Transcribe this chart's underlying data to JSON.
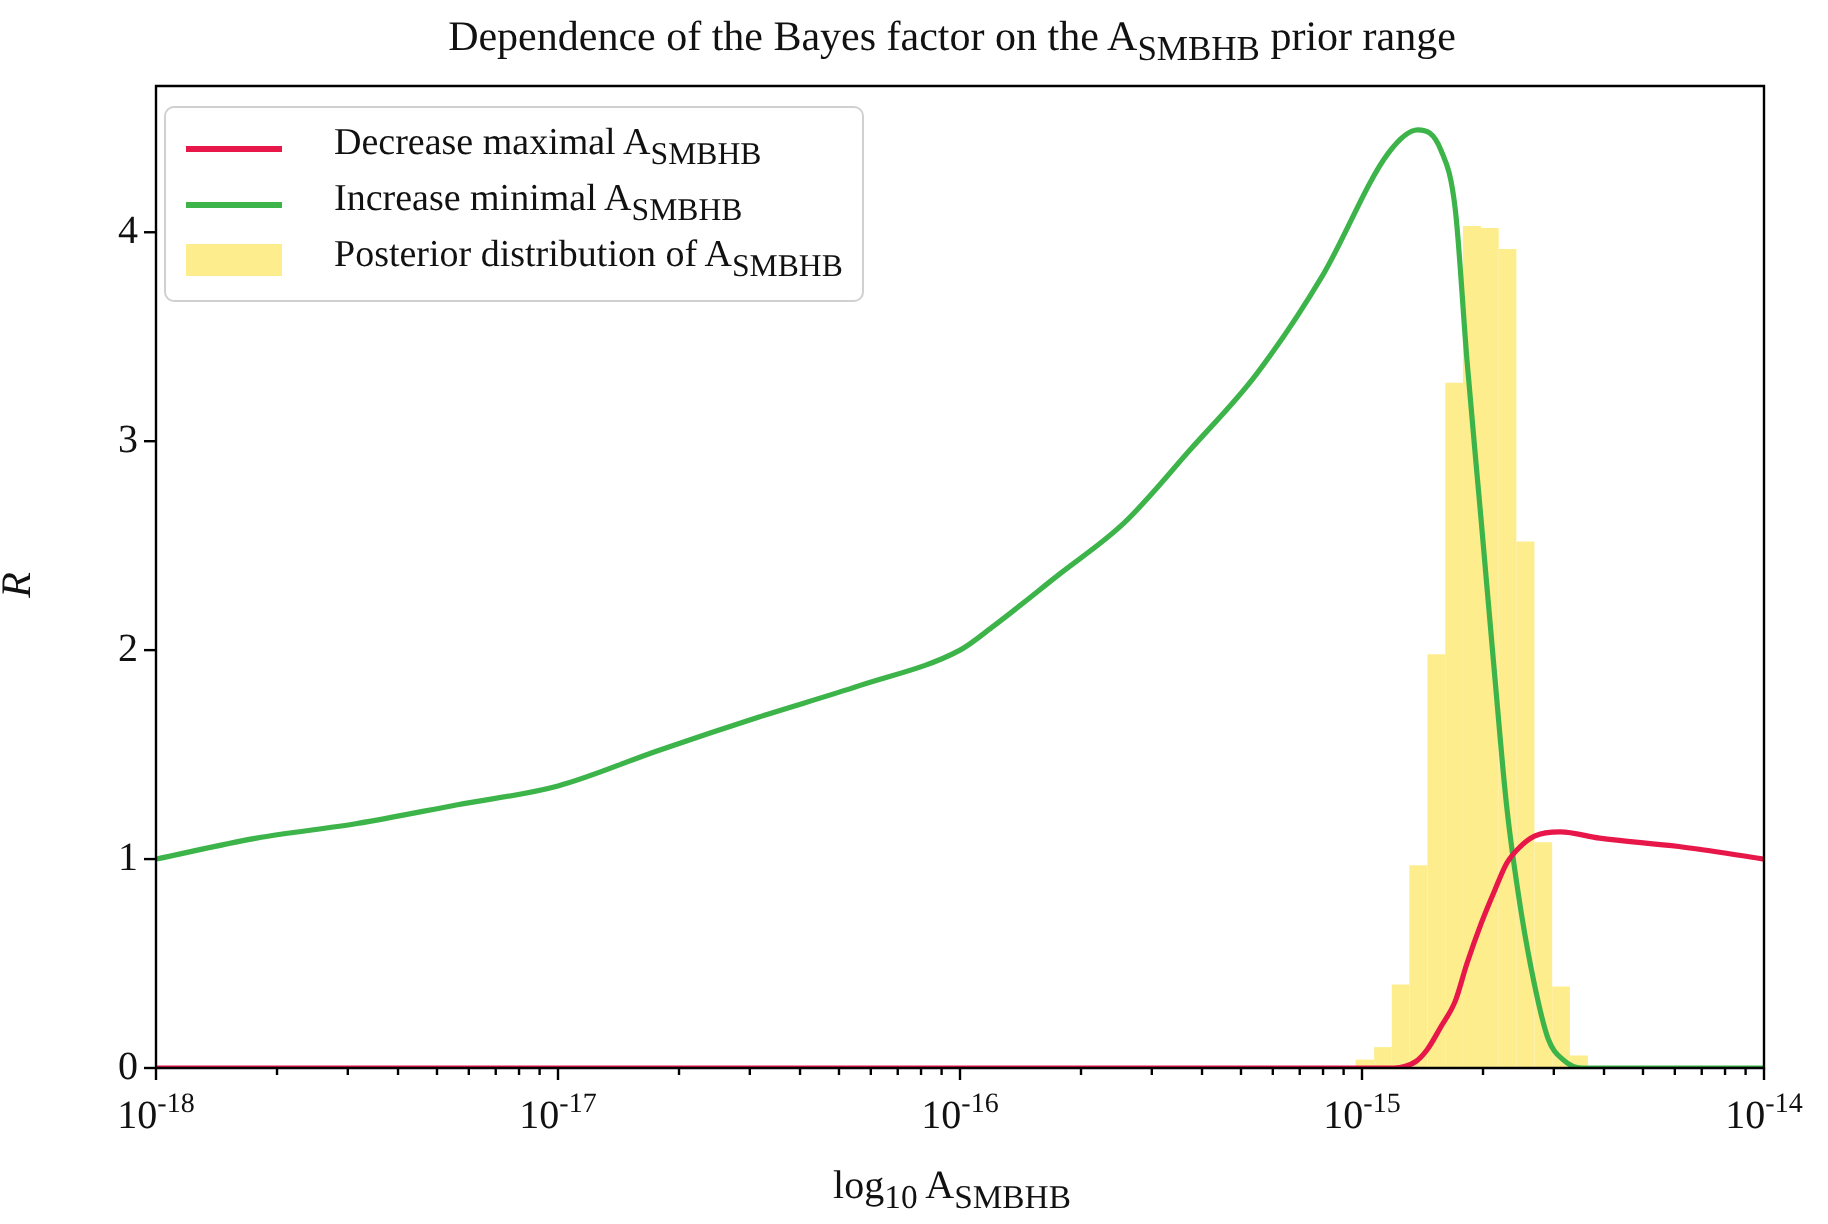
{
  "chart_data": {
    "type": "line",
    "title": "Dependence of the Bayes factor on the A$_{SMBHB}$ prior range",
    "xlabel": "log$_{10}$ A$_{SMBHB}$",
    "ylabel": "R",
    "log": "x",
    "grid": false,
    "legend": "top left",
    "xlim": [
      1e-18,
      1e-14
    ],
    "ylim": [
      0,
      4.7
    ],
    "xticks": [
      {
        "value": 1e-18,
        "label": "10$^{-18}$"
      },
      {
        "value": 2e-18,
        "label": null
      },
      {
        "value": 3e-18,
        "label": null
      },
      {
        "value": 4e-18,
        "label": null
      },
      {
        "value": 5e-18,
        "label": null
      },
      {
        "value": 6e-18,
        "label": null
      },
      {
        "value": 7e-18,
        "label": null
      },
      {
        "value": 8e-18,
        "label": null
      },
      {
        "value": 9e-18,
        "label": null
      },
      {
        "value": 1e-17,
        "label": "10$^{-17}$"
      },
      {
        "value": 2e-17,
        "label": null
      },
      {
        "value": 3e-17,
        "label": null
      },
      {
        "value": 4e-17,
        "label": null
      },
      {
        "value": 5e-17,
        "label": null
      },
      {
        "value": 6e-17,
        "label": null
      },
      {
        "value": 7e-17,
        "label": null
      },
      {
        "value": 8e-17,
        "label": null
      },
      {
        "value": 9e-17,
        "label": null
      },
      {
        "value": 1e-16,
        "label": "10$^{-16}$"
      },
      {
        "value": 2e-16,
        "label": null
      },
      {
        "value": 3e-16,
        "label": null
      },
      {
        "value": 4e-16,
        "label": null
      },
      {
        "value": 5e-16,
        "label": null
      },
      {
        "value": 6e-16,
        "label": null
      },
      {
        "value": 7e-16,
        "label": null
      },
      {
        "value": 8e-16,
        "label": null
      },
      {
        "value": 9e-16,
        "label": null
      },
      {
        "value": 1e-15,
        "label": "10$^{-15}$"
      },
      {
        "value": 2e-15,
        "label": null
      },
      {
        "value": 3e-15,
        "label": null
      },
      {
        "value": 4e-15,
        "label": null
      },
      {
        "value": 5e-15,
        "label": null
      },
      {
        "value": 6e-15,
        "label": null
      },
      {
        "value": 7e-15,
        "label": null
      },
      {
        "value": 8e-15,
        "label": null
      },
      {
        "value": 9e-15,
        "label": null
      },
      {
        "value": 1e-14,
        "label": "10$^{-14}$"
      }
    ],
    "yticks": [
      0,
      1,
      2,
      3,
      4
    ],
    "series": [
      {
        "name": "Decrease maximal A$_{SMBHB}$",
        "color": "#e8174a",
        "x": [
          1e-18,
          1.2e-15,
          1.358e-15,
          1.455e-15,
          1.574e-15,
          1.706e-15,
          1.824e-15,
          1.977e-15,
          2.138e-15,
          2.291e-15,
          2.477e-15,
          2.685e-15,
          3.112e-15,
          3.899e-15,
          6.138e-15,
          1e-14
        ],
        "values": [
          0,
          0,
          0.03,
          0.09,
          0.2,
          0.32,
          0.5,
          0.69,
          0.85,
          0.98,
          1.06,
          1.11,
          1.13,
          1.1,
          1.06,
          1.0
        ]
      },
      {
        "name": "Increase minimal A$_{SMBHB}$",
        "color": "#3cb449",
        "x": [
          1e-18,
          1.778e-18,
          3.162e-18,
          5.623e-18,
          1e-17,
          1.778e-17,
          3.162e-17,
          5.623e-17,
          1e-16,
          1.202e-16,
          1.758e-16,
          2.564e-16,
          3.741e-16,
          5.458e-16,
          7.962e-16,
          1.164e-15,
          1.377e-15,
          1.574e-15,
          1.706e-15,
          1.824e-15,
          1.977e-15,
          2.138e-15,
          2.291e-15,
          2.477e-15,
          2.685e-15,
          2.904e-15,
          3.162e-15,
          3.524e-15,
          1e-14
        ],
        "values": [
          1.0,
          1.1,
          1.17,
          1.26,
          1.35,
          1.52,
          1.68,
          1.83,
          2.0,
          2.11,
          2.36,
          2.61,
          2.96,
          3.32,
          3.79,
          4.38,
          4.49,
          4.39,
          4.11,
          3.39,
          2.63,
          1.88,
          1.25,
          0.77,
          0.4,
          0.14,
          0.04,
          0.0,
          0.0
        ]
      },
      {
        "name": "Posterior distribution of A$_{SMBHB}$",
        "type": "histogram",
        "color": "#feed8c",
        "bins": [
          9.64e-16,
          1.072e-15,
          1.186e-15,
          1.312e-15,
          1.455e-15,
          1.611e-15,
          1.782e-15,
          1.977e-15,
          2.188e-15,
          2.421e-15,
          2.685e-15,
          2.972e-15,
          3.289e-15,
          3.648e-15
        ],
        "values": [
          0.04,
          0.1,
          0.4,
          0.97,
          1.98,
          3.28,
          4.03,
          4.02,
          3.92,
          2.52,
          1.08,
          0.39,
          0.06
        ]
      }
    ]
  }
}
